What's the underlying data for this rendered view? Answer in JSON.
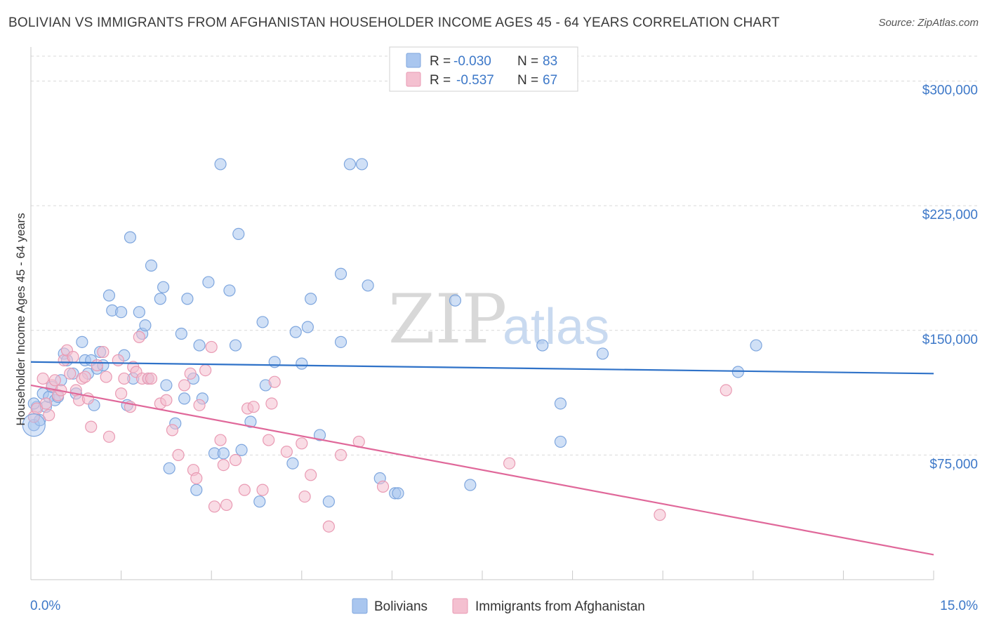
{
  "title": "BOLIVIAN VS IMMIGRANTS FROM AFGHANISTAN HOUSEHOLDER INCOME AGES 45 - 64 YEARS CORRELATION CHART",
  "source": "Source: ZipAtlas.com",
  "watermark": {
    "part1": "ZIP",
    "part2": "atlas"
  },
  "colors": {
    "blue_fill": "#a9c6ef",
    "blue_stroke": "#7ea6de",
    "blue_line": "#2f72c8",
    "pink_fill": "#f4c0d0",
    "pink_stroke": "#e99ab3",
    "pink_line": "#e0689a",
    "grid": "#d9d9d9",
    "axis_text": "#3d78c8"
  },
  "legend_top": {
    "rows": [
      {
        "r_label": "R =",
        "r_value": "-0.030",
        "n_label": "N =",
        "n_value": "83"
      },
      {
        "r_label": "R =",
        "r_value": "-0.537",
        "n_label": "N =",
        "n_value": "67"
      }
    ]
  },
  "legend_bottom": [
    "Bolivians",
    "Immigrants from Afghanistan"
  ],
  "chart_data": {
    "type": "scatter",
    "title": "BOLIVIAN VS IMMIGRANTS FROM AFGHANISTAN HOUSEHOLDER INCOME AGES 45 - 64 YEARS CORRELATION CHART",
    "xlabel": "",
    "ylabel": "Householder Income Ages 45 - 64 years",
    "xlim": [
      0,
      15
    ],
    "ylim": [
      0,
      315000
    ],
    "x_tick_labels": [
      "0.0%",
      "15.0%"
    ],
    "y_ticks": [
      75000,
      150000,
      225000,
      300000
    ],
    "y_tick_labels": [
      "$75,000",
      "$150,000",
      "$225,000",
      "$300,000"
    ],
    "grid": true,
    "series": [
      {
        "name": "Bolivians",
        "trend": {
          "x": [
            0,
            15
          ],
          "y": [
            131000,
            124000
          ]
        },
        "points": [
          [
            0.05,
            93000
          ],
          [
            0.1,
            104000
          ],
          [
            0.15,
            96000
          ],
          [
            0.2,
            112000
          ],
          [
            0.25,
            104000
          ],
          [
            0.3,
            110000
          ],
          [
            0.35,
            116000
          ],
          [
            0.4,
            108000
          ],
          [
            0.45,
            110000
          ],
          [
            0.5,
            120000
          ],
          [
            0.55,
            136000
          ],
          [
            0.6,
            132000
          ],
          [
            0.7,
            124000
          ],
          [
            0.75,
            112000
          ],
          [
            0.85,
            143000
          ],
          [
            0.9,
            132000
          ],
          [
            0.95,
            124000
          ],
          [
            1.0,
            132000
          ],
          [
            1.05,
            105000
          ],
          [
            1.1,
            127000
          ],
          [
            1.15,
            137000
          ],
          [
            1.2,
            129000
          ],
          [
            1.3,
            171000
          ],
          [
            1.35,
            162000
          ],
          [
            1.5,
            161000
          ],
          [
            1.55,
            135000
          ],
          [
            1.6,
            105000
          ],
          [
            1.65,
            206000
          ],
          [
            1.7,
            121000
          ],
          [
            1.8,
            161000
          ],
          [
            1.85,
            148000
          ],
          [
            1.9,
            153000
          ],
          [
            1.95,
            121000
          ],
          [
            2.0,
            189000
          ],
          [
            2.15,
            169000
          ],
          [
            2.2,
            176000
          ],
          [
            2.25,
            117000
          ],
          [
            2.3,
            67000
          ],
          [
            2.4,
            94000
          ],
          [
            2.5,
            148000
          ],
          [
            2.55,
            109000
          ],
          [
            2.6,
            169000
          ],
          [
            2.7,
            121000
          ],
          [
            2.75,
            54000
          ],
          [
            2.8,
            141000
          ],
          [
            2.85,
            109000
          ],
          [
            2.95,
            179000
          ],
          [
            3.05,
            76000
          ],
          [
            3.15,
            250000
          ],
          [
            3.2,
            76000
          ],
          [
            3.3,
            174000
          ],
          [
            3.4,
            141000
          ],
          [
            3.45,
            208000
          ],
          [
            3.5,
            78000
          ],
          [
            3.65,
            95000
          ],
          [
            3.8,
            47000
          ],
          [
            3.9,
            117000
          ],
          [
            3.85,
            155000
          ],
          [
            4.05,
            131000
          ],
          [
            4.35,
            70000
          ],
          [
            4.4,
            149000
          ],
          [
            4.5,
            130000
          ],
          [
            4.6,
            152000
          ],
          [
            4.65,
            169000
          ],
          [
            4.8,
            87000
          ],
          [
            4.95,
            47000
          ],
          [
            5.15,
            184000
          ],
          [
            5.15,
            143000
          ],
          [
            5.3,
            250000
          ],
          [
            5.5,
            250000
          ],
          [
            5.6,
            177000
          ],
          [
            5.8,
            61000
          ],
          [
            6.05,
            52000
          ],
          [
            6.1,
            52000
          ],
          [
            7.05,
            168000
          ],
          [
            7.3,
            57000
          ],
          [
            8.5,
            141000
          ],
          [
            8.8,
            106000
          ],
          [
            8.8,
            83000
          ],
          [
            9.5,
            136000
          ],
          [
            11.75,
            125000
          ],
          [
            12.05,
            141000
          ],
          [
            0.05,
            106000
          ]
        ]
      },
      {
        "name": "Immigrants from Afghanistan",
        "trend": {
          "x": [
            0,
            15
          ],
          "y": [
            117000,
            15000
          ]
        },
        "points": [
          [
            0.05,
            98000
          ],
          [
            0.1,
            103000
          ],
          [
            0.2,
            121000
          ],
          [
            0.25,
            106000
          ],
          [
            0.3,
            99000
          ],
          [
            0.35,
            117000
          ],
          [
            0.4,
            120000
          ],
          [
            0.45,
            111000
          ],
          [
            0.5,
            114000
          ],
          [
            0.55,
            132000
          ],
          [
            0.6,
            138000
          ],
          [
            0.65,
            124000
          ],
          [
            0.7,
            134000
          ],
          [
            0.75,
            114000
          ],
          [
            0.8,
            108000
          ],
          [
            0.85,
            121000
          ],
          [
            0.9,
            122000
          ],
          [
            0.95,
            109000
          ],
          [
            1.0,
            92000
          ],
          [
            1.1,
            129000
          ],
          [
            1.2,
            137000
          ],
          [
            1.25,
            122000
          ],
          [
            1.3,
            86000
          ],
          [
            1.45,
            132000
          ],
          [
            1.5,
            112000
          ],
          [
            1.55,
            121000
          ],
          [
            1.65,
            104000
          ],
          [
            1.7,
            128000
          ],
          [
            1.75,
            125000
          ],
          [
            1.8,
            146000
          ],
          [
            1.85,
            121000
          ],
          [
            1.95,
            121000
          ],
          [
            2.0,
            121000
          ],
          [
            2.15,
            106000
          ],
          [
            2.25,
            108000
          ],
          [
            2.35,
            90000
          ],
          [
            2.45,
            75000
          ],
          [
            2.55,
            117000
          ],
          [
            2.65,
            124000
          ],
          [
            2.7,
            66000
          ],
          [
            2.75,
            61000
          ],
          [
            2.8,
            105000
          ],
          [
            2.9,
            126000
          ],
          [
            3.0,
            140000
          ],
          [
            3.05,
            44000
          ],
          [
            3.15,
            84000
          ],
          [
            3.2,
            69000
          ],
          [
            3.25,
            45000
          ],
          [
            3.4,
            72000
          ],
          [
            3.55,
            54000
          ],
          [
            3.6,
            103000
          ],
          [
            3.7,
            104000
          ],
          [
            3.85,
            54000
          ],
          [
            3.95,
            84000
          ],
          [
            4.0,
            106000
          ],
          [
            4.05,
            119000
          ],
          [
            4.25,
            77000
          ],
          [
            4.5,
            82000
          ],
          [
            4.55,
            50000
          ],
          [
            4.65,
            63000
          ],
          [
            4.95,
            32000
          ],
          [
            5.15,
            75000
          ],
          [
            5.45,
            83000
          ],
          [
            5.85,
            56000
          ],
          [
            7.95,
            70000
          ],
          [
            10.45,
            39000
          ],
          [
            11.55,
            114000
          ]
        ]
      }
    ]
  }
}
